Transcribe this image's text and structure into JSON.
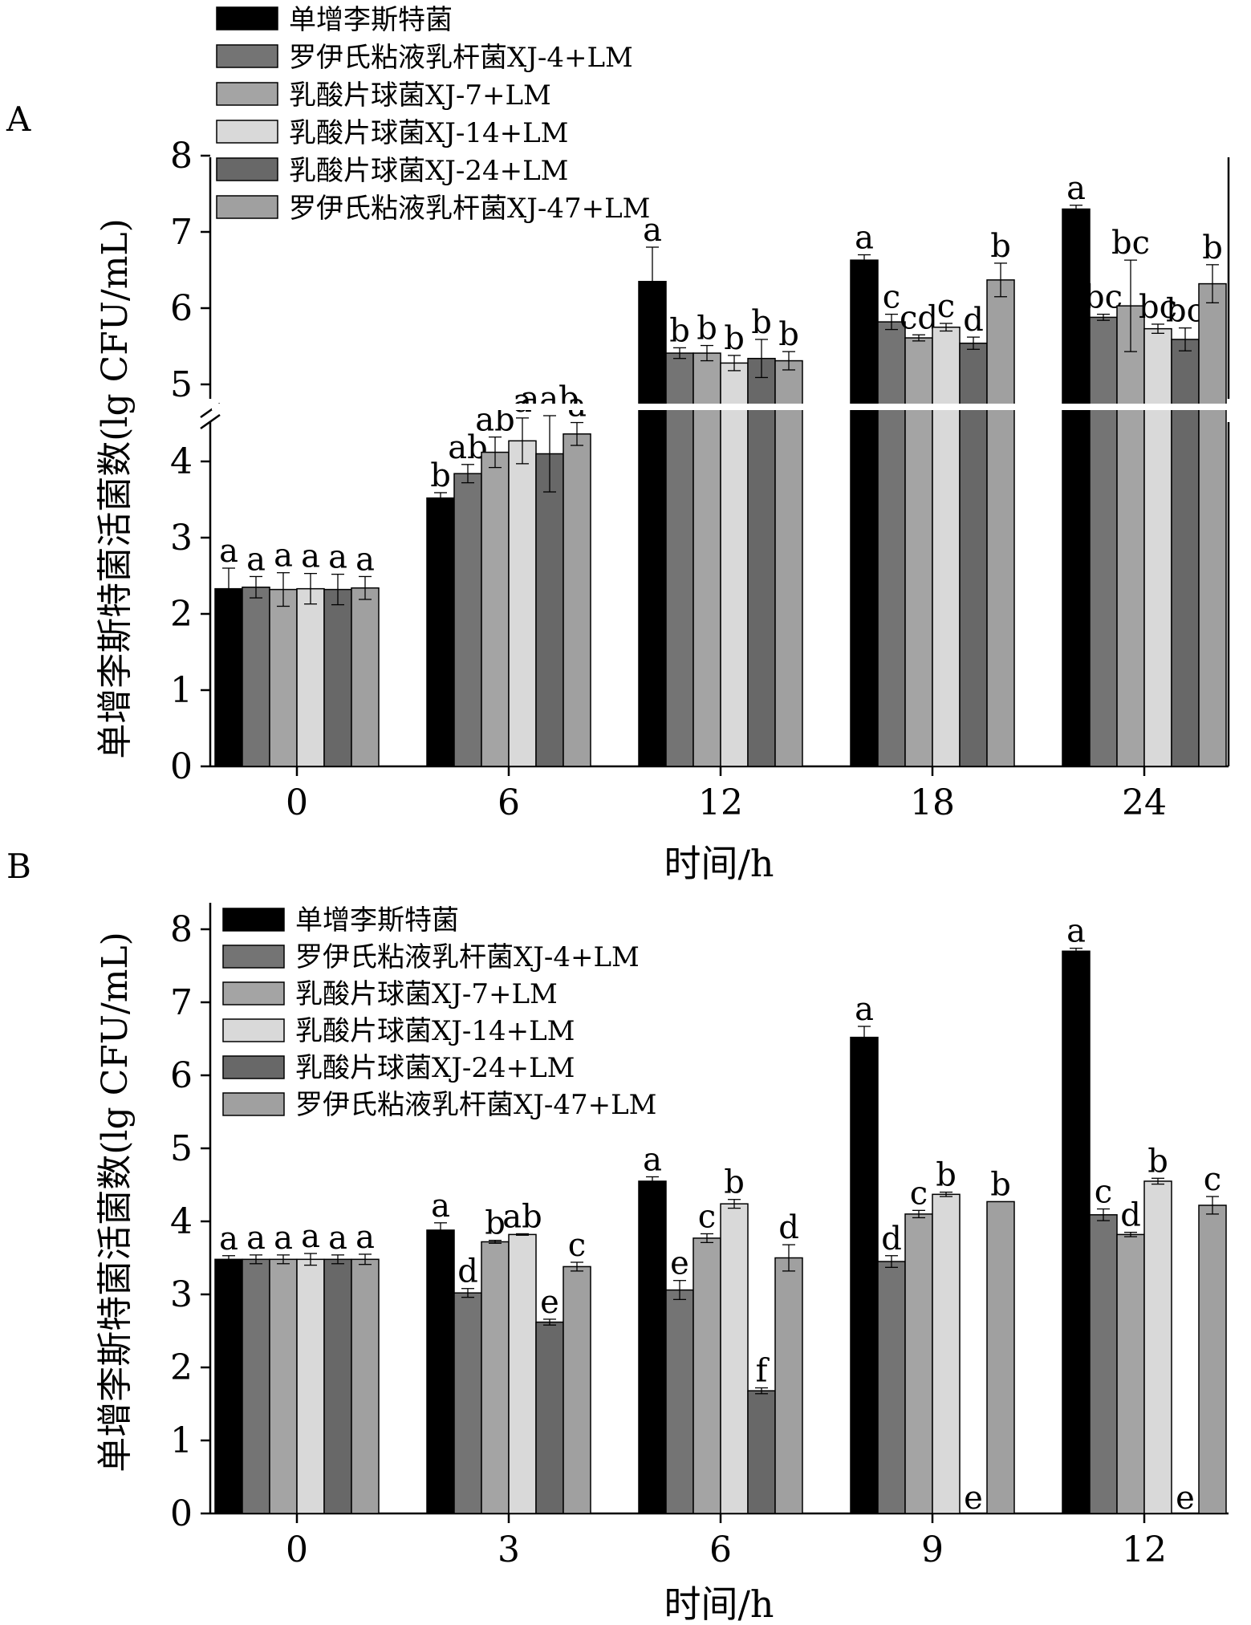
{
  "chart_data": [
    {
      "type": "bar",
      "panel_label": "A",
      "xlabel": "时间/h",
      "ylabel": "单增李斯特菌活菌数(lg CFU/mL)",
      "categories": [
        "0",
        "6",
        "12",
        "18",
        "24"
      ],
      "yticks_lower": [
        "0",
        "1",
        "2",
        "3",
        "4"
      ],
      "yticks_upper": [
        "5",
        "6",
        "7",
        "8"
      ],
      "axis_break": {
        "lower_max": 4.7,
        "upper_min": 4.7,
        "upper_max": 8
      },
      "legend_position": "top-left",
      "series": [
        {
          "name": "单增李斯特菌",
          "color": "#000000",
          "values": [
            2.33,
            3.52,
            6.35,
            6.63,
            7.3
          ],
          "errors": [
            0.27,
            0.07,
            0.45,
            0.07,
            0.05
          ],
          "letters": [
            "a",
            "b",
            "a",
            "a",
            "a"
          ]
        },
        {
          "name": "罗伊氏粘液乳杆菌XJ-4+LM",
          "color": "#747474",
          "values": [
            2.35,
            3.84,
            5.41,
            5.82,
            5.88
          ],
          "errors": [
            0.14,
            0.12,
            0.07,
            0.1,
            0.04
          ],
          "letters": [
            "a",
            "ab",
            "b",
            "c",
            "bc"
          ]
        },
        {
          "name": "乳酸片球菌XJ-7+LM",
          "color": "#a4a4a4",
          "values": [
            2.32,
            4.12,
            5.41,
            5.61,
            6.03
          ],
          "errors": [
            0.22,
            0.2,
            0.1,
            0.04,
            0.6
          ],
          "letters": [
            "a",
            "ab",
            "b",
            "cd",
            "bc"
          ]
        },
        {
          "name": "乳酸片球菌XJ-14+LM",
          "color": "#d9d9d9",
          "values": [
            2.33,
            4.27,
            5.28,
            5.75,
            5.73
          ],
          "errors": [
            0.2,
            0.3,
            0.1,
            0.05,
            0.06
          ],
          "letters": [
            "a",
            "a",
            "b",
            "c",
            "bc"
          ]
        },
        {
          "name": "乳酸片球菌XJ-24+LM",
          "color": "#686868",
          "values": [
            2.32,
            4.1,
            5.34,
            5.54,
            5.59
          ],
          "errors": [
            0.2,
            0.5,
            0.25,
            0.08,
            0.15
          ],
          "letters": [
            "a",
            "aab",
            "b",
            "d",
            "bc"
          ]
        },
        {
          "name": "罗伊氏粘液乳杆菌XJ-47+LM",
          "color": "#a0a0a0",
          "values": [
            2.34,
            4.36,
            5.31,
            6.37,
            6.32
          ],
          "errors": [
            0.15,
            0.15,
            0.12,
            0.22,
            0.25
          ],
          "letters": [
            "a",
            "a",
            "b",
            "b",
            "b"
          ]
        }
      ]
    },
    {
      "type": "bar",
      "panel_label": "B",
      "xlabel": "时间/h",
      "ylabel": "单增李斯特菌活菌数(lg CFU/mL)",
      "categories": [
        "0",
        "3",
        "6",
        "9",
        "12"
      ],
      "yticks": [
        "0",
        "1",
        "2",
        "3",
        "4",
        "5",
        "6",
        "7",
        "8"
      ],
      "ylim": [
        0,
        8.5
      ],
      "legend_position": "top-left",
      "series": [
        {
          "name": "单增李斯特菌",
          "color": "#000000",
          "values": [
            3.48,
            3.88,
            4.55,
            6.52,
            7.7
          ],
          "errors": [
            0.05,
            0.1,
            0.06,
            0.15,
            0.04
          ],
          "letters": [
            "a",
            "a",
            "a",
            "a",
            "a"
          ]
        },
        {
          "name": "罗伊氏粘液乳杆菌XJ-4+LM",
          "color": "#747474",
          "values": [
            3.48,
            3.02,
            3.06,
            3.45,
            4.09
          ],
          "errors": [
            0.06,
            0.06,
            0.13,
            0.08,
            0.08
          ],
          "letters": [
            "a",
            "d",
            "e",
            "d",
            "c"
          ]
        },
        {
          "name": "乳酸片球菌XJ-7+LM",
          "color": "#a4a4a4",
          "values": [
            3.48,
            3.72,
            3.77,
            4.1,
            3.82
          ],
          "errors": [
            0.06,
            0.02,
            0.06,
            0.05,
            0.03
          ],
          "letters": [
            "a",
            "b",
            "c",
            "c",
            "d"
          ]
        },
        {
          "name": "乳酸片球菌XJ-14+LM",
          "color": "#d9d9d9",
          "values": [
            3.48,
            3.82,
            4.24,
            4.37,
            4.55
          ],
          "errors": [
            0.08,
            0.01,
            0.06,
            0.03,
            0.04
          ],
          "letters": [
            "a",
            "ab",
            "b",
            "b",
            "b"
          ]
        },
        {
          "name": "乳酸片球菌XJ-24+LM",
          "color": "#686868",
          "values": [
            3.48,
            2.62,
            1.68,
            0,
            0
          ],
          "errors": [
            0.06,
            0.04,
            0.04,
            0,
            0
          ],
          "letters": [
            "a",
            "e",
            "f",
            "e",
            "e"
          ]
        },
        {
          "name": "罗伊氏粘液乳杆菌XJ-47+LM",
          "color": "#a0a0a0",
          "values": [
            3.48,
            3.38,
            3.5,
            4.27,
            4.22
          ],
          "errors": [
            0.07,
            0.06,
            0.18,
            0,
            0.12
          ],
          "letters": [
            "a",
            "c",
            "d",
            "b",
            "c"
          ]
        }
      ]
    }
  ]
}
